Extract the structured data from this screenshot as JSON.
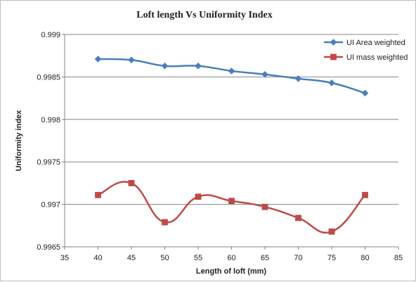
{
  "chart_data": {
    "type": "line",
    "title": "Loft length Vs Uniformity Index",
    "xlabel": "Length of loft (mm)",
    "ylabel": "Uniformity index",
    "x": [
      40,
      45,
      50,
      55,
      60,
      65,
      70,
      75,
      80
    ],
    "xticks": [
      "35",
      "40",
      "45",
      "50",
      "55",
      "60",
      "65",
      "70",
      "75",
      "80",
      "85"
    ],
    "yticks": [
      "0.9965",
      "0.997",
      "0.9975",
      "0.998",
      "0.9985",
      "0.999"
    ],
    "xlim": [
      35,
      85
    ],
    "ylim": [
      0.9965,
      0.999
    ],
    "grid": true,
    "legend_position": "top-right",
    "series": [
      {
        "name": "UI Area weighted",
        "color": "#4a7ebb",
        "marker": "diamond",
        "values": [
          0.99871,
          0.9987,
          0.99863,
          0.99863,
          0.99857,
          0.99853,
          0.99848,
          0.99843,
          0.99831
        ]
      },
      {
        "name": "UI mass weighted",
        "color": "#be4b48",
        "marker": "square",
        "values": [
          0.99711,
          0.99725,
          0.99679,
          0.99709,
          0.99704,
          0.99697,
          0.99684,
          0.99668,
          0.99711
        ]
      }
    ]
  }
}
